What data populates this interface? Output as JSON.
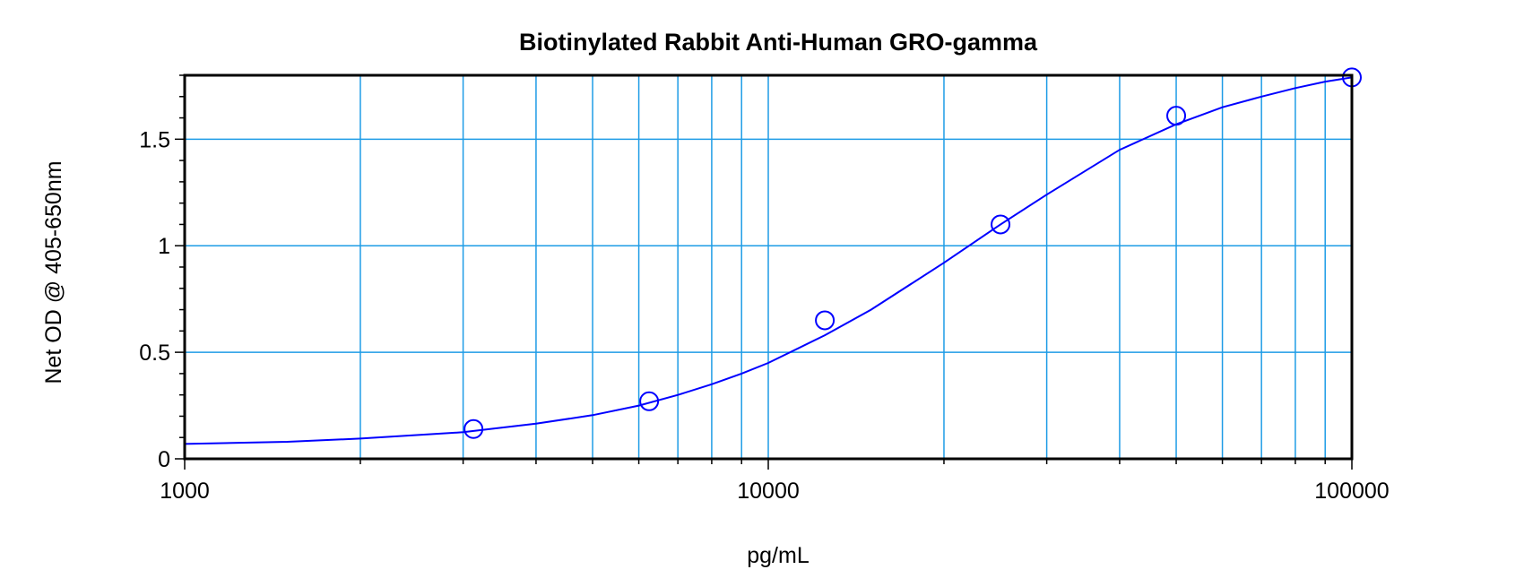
{
  "chart_data": {
    "type": "scatter",
    "title": "Biotinylated Rabbit Anti-Human GRO-gamma",
    "xlabel": "pg/mL",
    "ylabel": "Net OD @ 405-650nm",
    "x_scale": "log",
    "xlim": [
      1000,
      100000
    ],
    "ylim": [
      0,
      1.8
    ],
    "x_ticks": [
      1000,
      10000,
      100000
    ],
    "x_tick_labels": [
      "1000",
      "10000",
      "100000"
    ],
    "y_ticks": [
      0,
      0.5,
      1,
      1.5
    ],
    "y_tick_labels": [
      "0",
      "0.5",
      "1",
      "1.5"
    ],
    "grid": true,
    "legend": "none",
    "series": [
      {
        "type": "scatter",
        "x": [
          3125,
          6250,
          12500,
          25000,
          50000,
          100000
        ],
        "y": [
          0.14,
          0.27,
          0.65,
          1.1,
          1.61,
          1.79
        ]
      },
      {
        "type": "line",
        "fit": "4-parameter logistic",
        "x": [
          1000,
          1500,
          2000,
          3000,
          4000,
          5000,
          6000,
          7000,
          8000,
          9000,
          10000,
          12500,
          15000,
          20000,
          25000,
          30000,
          40000,
          50000,
          60000,
          70000,
          80000,
          90000,
          100000
        ],
        "y": [
          0.07,
          0.08,
          0.095,
          0.125,
          0.165,
          0.205,
          0.25,
          0.3,
          0.35,
          0.4,
          0.45,
          0.58,
          0.7,
          0.92,
          1.1,
          1.24,
          1.45,
          1.57,
          1.65,
          1.7,
          1.74,
          1.77,
          1.79
        ]
      }
    ]
  },
  "colors": {
    "series": "#0000ff",
    "grid": "#1e9ce6",
    "axis": "#000000",
    "text": "#000000"
  }
}
